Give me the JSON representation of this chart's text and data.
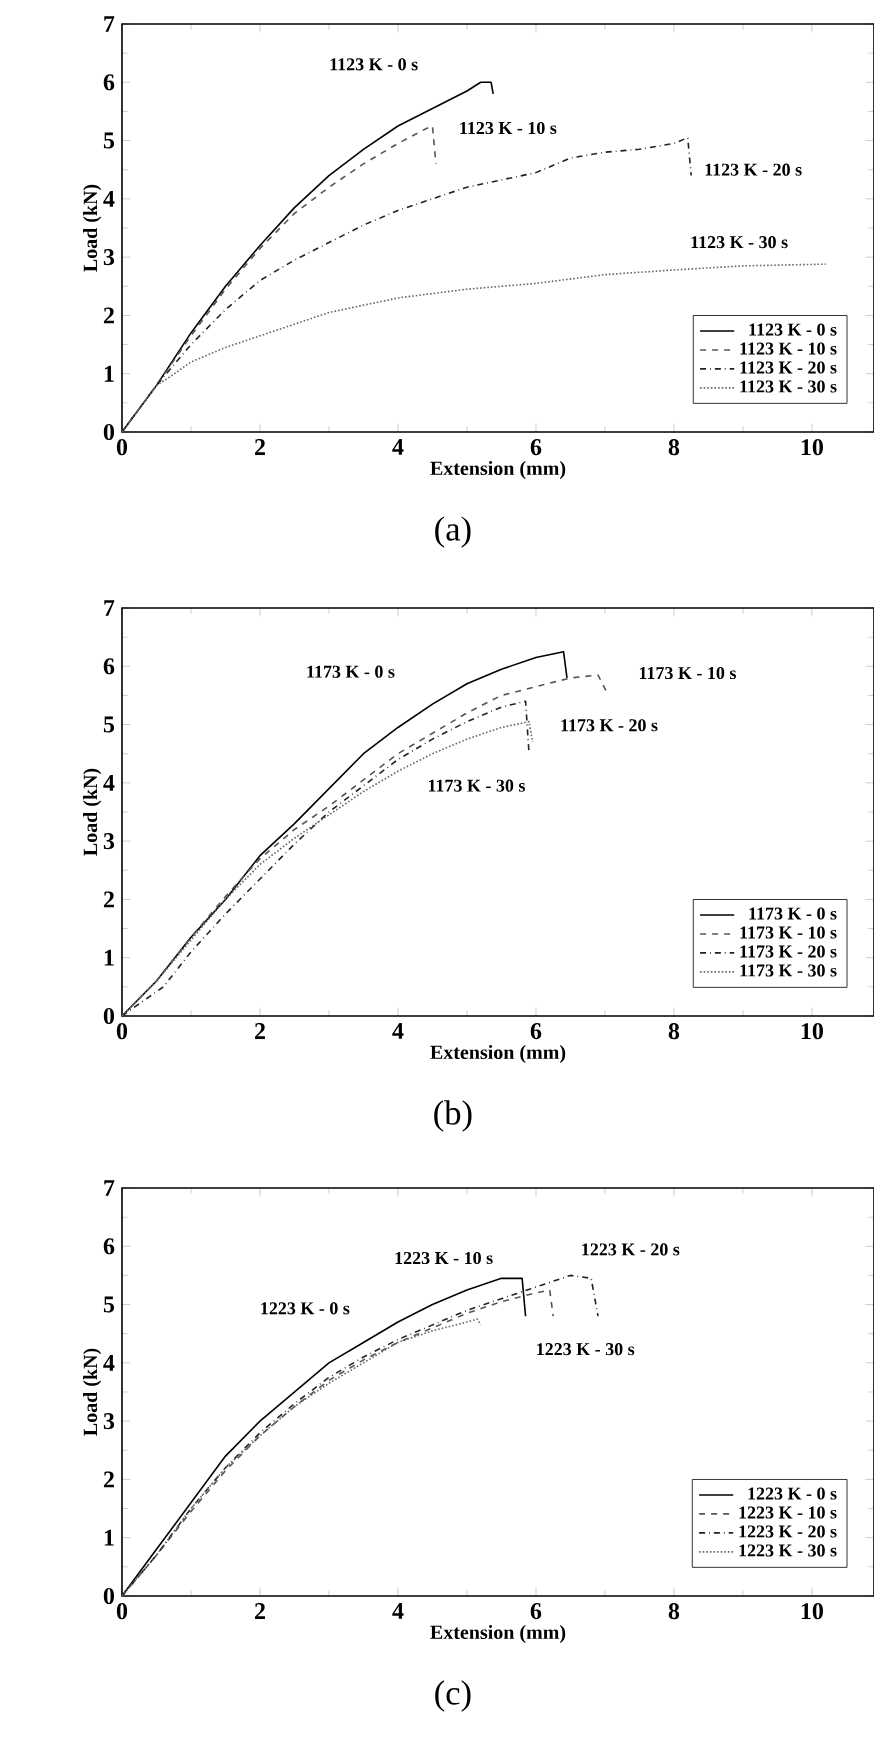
{
  "chart_data": [
    {
      "type": "line",
      "xlabel": "Extension (mm)",
      "ylabel": "Load (kN)",
      "xlim": [
        0,
        10.9
      ],
      "ylim": [
        0,
        7
      ],
      "xticks": [
        0,
        2,
        4,
        6,
        8,
        10
      ],
      "yticks": [
        0,
        1,
        2,
        3,
        4,
        5,
        6,
        7
      ],
      "legend": "bottom right",
      "grid": false,
      "series": [
        {
          "name": "1123 K -   0 s",
          "color": "#000000",
          "line_style": "solid",
          "x": [
            0,
            0.5,
            1,
            1.5,
            2,
            2.5,
            3,
            3.5,
            4,
            4.5,
            5,
            5.2,
            5.35,
            5.38
          ],
          "values": [
            0,
            0.8,
            1.7,
            2.5,
            3.2,
            3.85,
            4.4,
            4.85,
            5.25,
            5.55,
            5.85,
            6.0,
            6.0,
            5.8
          ]
        },
        {
          "name": "1123 K - 10 s",
          "color": "#555555",
          "line_style": "dashed",
          "x": [
            0,
            0.5,
            1,
            1.5,
            2,
            2.5,
            3,
            3.5,
            4,
            4.4,
            4.5,
            4.55
          ],
          "values": [
            0,
            0.8,
            1.65,
            2.45,
            3.15,
            3.75,
            4.2,
            4.6,
            4.95,
            5.2,
            5.25,
            4.6
          ]
        },
        {
          "name": "1123 K - 20 s",
          "color": "#222222",
          "line_style": "dashdot",
          "x": [
            0,
            0.5,
            1,
            1.5,
            2,
            2.5,
            3,
            3.5,
            4,
            5,
            6,
            6.5,
            7,
            7.5,
            8,
            8.2,
            8.25
          ],
          "values": [
            0,
            0.8,
            1.5,
            2.1,
            2.6,
            2.95,
            3.25,
            3.55,
            3.8,
            4.2,
            4.45,
            4.7,
            4.8,
            4.85,
            4.95,
            5.05,
            4.4
          ]
        },
        {
          "name": "1123 K - 30 s",
          "color": "#666666",
          "line_style": "dotted",
          "x": [
            0,
            0.5,
            0.7,
            1,
            1.5,
            2,
            2.5,
            3,
            4,
            5,
            6,
            7,
            8,
            9,
            10.2
          ],
          "values": [
            0,
            0.8,
            0.95,
            1.2,
            1.45,
            1.65,
            1.85,
            2.05,
            2.3,
            2.45,
            2.55,
            2.7,
            2.78,
            2.85,
            2.88
          ]
        }
      ],
      "annotations": [
        "1123 K - 0 s",
        "1123 K - 10 s",
        "1123 K - 20 s",
        "1123 K - 30 s",
        "(a)"
      ]
    },
    {
      "type": "line",
      "xlabel": "Extension (mm)",
      "ylabel": "Load (kN)",
      "xlim": [
        0,
        10.9
      ],
      "ylim": [
        0,
        7
      ],
      "xticks": [
        0,
        2,
        4,
        6,
        8,
        10
      ],
      "yticks": [
        0,
        1,
        2,
        3,
        4,
        5,
        6,
        7
      ],
      "legend": "bottom right",
      "grid": false,
      "series": [
        {
          "name": "1173 K -   0 s",
          "color": "#000000",
          "line_style": "solid",
          "x": [
            0,
            0.5,
            1,
            1.5,
            2,
            2.5,
            3,
            3.5,
            4,
            4.5,
            5,
            5.5,
            6,
            6.4,
            6.45
          ],
          "values": [
            0,
            0.6,
            1.35,
            2.0,
            2.75,
            3.3,
            3.9,
            4.5,
            4.95,
            5.35,
            5.7,
            5.95,
            6.15,
            6.25,
            5.8
          ]
        },
        {
          "name": "1173 K - 10 s",
          "color": "#555555",
          "line_style": "dashed",
          "x": [
            0,
            0.5,
            1,
            1.5,
            2,
            2.5,
            3,
            3.5,
            4,
            4.5,
            5,
            5.5,
            6,
            6.5,
            6.9,
            7.05
          ],
          "values": [
            0,
            0.6,
            1.35,
            2.05,
            2.7,
            3.2,
            3.6,
            4.05,
            4.5,
            4.85,
            5.2,
            5.5,
            5.65,
            5.8,
            5.85,
            5.5
          ]
        },
        {
          "name": "1173 K - 20 s",
          "color": "#222222",
          "line_style": "dashdot",
          "x": [
            0,
            0.6,
            1,
            1.5,
            2,
            2.5,
            3,
            3.5,
            4,
            4.5,
            5,
            5.5,
            5.85,
            5.9
          ],
          "values": [
            0,
            0.5,
            1.1,
            1.75,
            2.35,
            2.95,
            3.5,
            3.95,
            4.4,
            4.75,
            5.05,
            5.3,
            5.4,
            4.5
          ]
        },
        {
          "name": "1173 K - 30 s",
          "color": "#666666",
          "line_style": "dotted",
          "x": [
            0,
            0.5,
            1,
            1.5,
            2,
            2.5,
            3,
            3.5,
            4,
            4.5,
            5,
            5.5,
            5.9,
            5.95
          ],
          "values": [
            0,
            0.6,
            1.3,
            2.0,
            2.6,
            3.05,
            3.45,
            3.85,
            4.2,
            4.5,
            4.75,
            4.95,
            5.05,
            4.7
          ]
        }
      ],
      "annotations": [
        "1173 K - 0 s",
        "1173 K - 10 s",
        "1173 K - 20 s",
        "1173 K - 30 s",
        "(b)"
      ]
    },
    {
      "type": "line",
      "xlabel": "Extension (mm)",
      "ylabel": "Load (kN)",
      "xlim": [
        0,
        10.9
      ],
      "ylim": [
        0,
        7
      ],
      "xticks": [
        0,
        2,
        4,
        6,
        8,
        10
      ],
      "yticks": [
        0,
        1,
        2,
        3,
        4,
        5,
        6,
        7
      ],
      "legend": "bottom right",
      "grid": false,
      "series": [
        {
          "name": "1223 K -   0 s",
          "color": "#000000",
          "line_style": "solid",
          "x": [
            0,
            0.5,
            1,
            1.5,
            2,
            2.5,
            3,
            3.5,
            4,
            4.5,
            5,
            5.5,
            5.8,
            5.85
          ],
          "values": [
            0,
            0.8,
            1.6,
            2.4,
            3.0,
            3.5,
            4.0,
            4.35,
            4.7,
            5.0,
            5.25,
            5.45,
            5.45,
            4.8
          ]
        },
        {
          "name": "1223 K - 10 s",
          "color": "#555555",
          "line_style": "dashed",
          "x": [
            0,
            0.5,
            1,
            1.5,
            2,
            2.5,
            3,
            3.5,
            4,
            4.5,
            5,
            5.5,
            6,
            6.2,
            6.25
          ],
          "values": [
            0,
            0.7,
            1.45,
            2.15,
            2.75,
            3.25,
            3.7,
            4.05,
            4.35,
            4.6,
            4.85,
            5.05,
            5.2,
            5.25,
            4.8
          ]
        },
        {
          "name": "1223 K - 20 s",
          "color": "#222222",
          "line_style": "dashdot",
          "x": [
            0,
            0.5,
            1,
            1.5,
            2,
            2.5,
            3,
            3.5,
            4,
            4.5,
            5,
            5.5,
            6,
            6.5,
            6.8,
            6.9
          ],
          "values": [
            0,
            0.7,
            1.5,
            2.2,
            2.8,
            3.3,
            3.75,
            4.1,
            4.4,
            4.65,
            4.9,
            5.1,
            5.3,
            5.5,
            5.45,
            4.8
          ]
        },
        {
          "name": "1223 K - 30 s",
          "color": "#666666",
          "line_style": "dotted",
          "x": [
            0,
            0.5,
            1,
            1.5,
            2,
            2.5,
            3,
            3.5,
            4,
            4.5,
            5,
            5.15,
            5.2
          ],
          "values": [
            0,
            0.7,
            1.5,
            2.2,
            2.75,
            3.25,
            3.65,
            4.0,
            4.35,
            4.55,
            4.7,
            4.75,
            4.65
          ]
        }
      ],
      "annotations": [
        "1223 K - 0 s",
        "1223 K - 10 s",
        "1223 K - 20 s",
        "1223 K - 30 s",
        "(c)"
      ]
    }
  ]
}
